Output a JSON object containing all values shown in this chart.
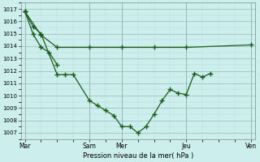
{
  "xlabel": "Pression niveau de la mer( hPa )",
  "bg_color": "#cceeed",
  "grid_major_color": "#9ab8b5",
  "grid_minor_color": "#b8d8d5",
  "line_color": "#1a5c1a",
  "ylim": [
    1006.5,
    1017.5
  ],
  "yticks": [
    1007,
    1008,
    1009,
    1010,
    1011,
    1012,
    1013,
    1014,
    1015,
    1016,
    1017
  ],
  "xtick_labels": [
    "Mar",
    "",
    "Sam",
    "Mer",
    "",
    "Jeu",
    "",
    "Ven"
  ],
  "xtick_positions": [
    0,
    4,
    8,
    12,
    16,
    20,
    24,
    28
  ],
  "day_lines": [
    0,
    8,
    12,
    20,
    28
  ],
  "xlim": [
    -0.5,
    28.5
  ],
  "line1_x": [
    0,
    1,
    2,
    4,
    5,
    6,
    8,
    9,
    10,
    11,
    12,
    13,
    14,
    15,
    16,
    17,
    18,
    19,
    20,
    21,
    22,
    23
  ],
  "line1_y": [
    1016.8,
    1015.6,
    1015.0,
    1011.7,
    1011.7,
    1011.7,
    1009.6,
    1009.2,
    1008.8,
    1008.4,
    1007.5,
    1007.5,
    1007.0,
    1007.5,
    1008.5,
    1009.6,
    1010.5,
    1010.2,
    1010.1,
    1011.8,
    1011.5,
    1011.8
  ],
  "line2_x": [
    0,
    2,
    4,
    8,
    12,
    16,
    20,
    28
  ],
  "line2_y": [
    1016.8,
    1014.9,
    1013.9,
    1013.9,
    1013.9,
    1013.9,
    1013.9,
    1014.1
  ],
  "line3_x": [
    0,
    1,
    2,
    3,
    4
  ],
  "line3_y": [
    1016.8,
    1015.0,
    1013.9,
    1013.5,
    1012.5
  ],
  "figsize": [
    3.2,
    2.0
  ],
  "dpi": 100
}
